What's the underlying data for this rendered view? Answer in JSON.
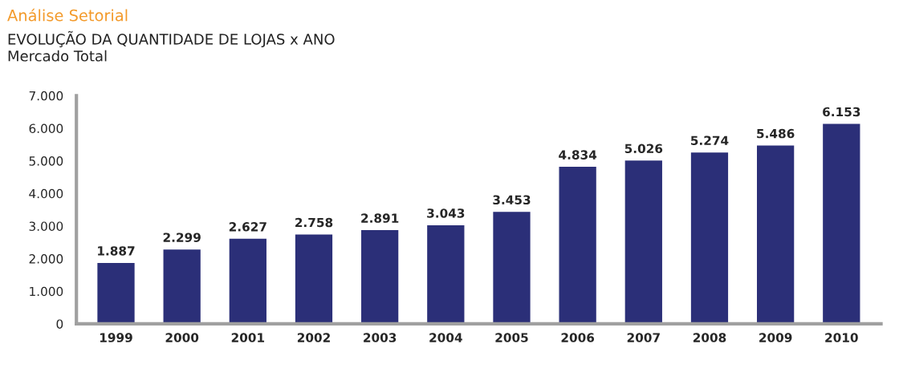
{
  "chart_data": {
    "type": "bar",
    "title": "Análise Setorial",
    "subtitle": "EVOLUÇÃO DA QUANTIDADE DE LOJAS x ANO\nMercado Total",
    "categories": [
      "1999",
      "2000",
      "2001",
      "2002",
      "2003",
      "2004",
      "2005",
      "2006",
      "2007",
      "2008",
      "2009",
      "2010"
    ],
    "values": [
      1887,
      2299,
      2627,
      2758,
      2891,
      3043,
      3453,
      4834,
      5026,
      5274,
      5486,
      6153
    ],
    "value_labels": [
      "1.887",
      "2.299",
      "2.627",
      "2.758",
      "2.891",
      "3.043",
      "3.453",
      "4.834",
      "5.026",
      "5.274",
      "5.486",
      "6.153"
    ],
    "color": "#2b2f78",
    "ylim": [
      0,
      7000
    ],
    "yticks": [
      {
        "value": 0,
        "label": "0"
      },
      {
        "value": 1000,
        "label": "1.000"
      },
      {
        "value": 2000,
        "label": "2.000"
      },
      {
        "value": 3000,
        "label": "3.000"
      },
      {
        "value": 4000,
        "label": "4.000"
      },
      {
        "value": 5000,
        "label": "5.000"
      },
      {
        "value": 6000,
        "label": "6.000"
      },
      {
        "value": 7000,
        "label": "7.000"
      }
    ],
    "grid": false,
    "legend": false
  }
}
